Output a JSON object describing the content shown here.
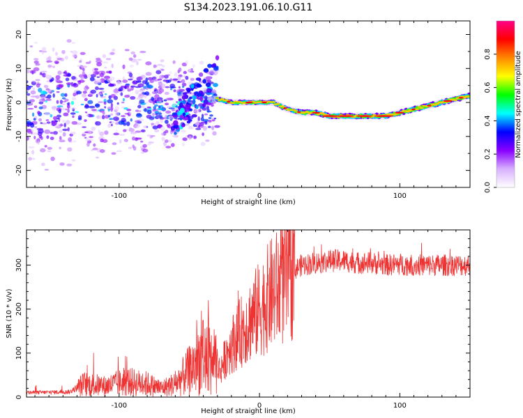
{
  "chart_data": [
    {
      "type": "heatmap",
      "title": "S134.2023.191.06.10.G11",
      "xlabel": "Height of straight line (km)",
      "ylabel": "Frequency (Hz)",
      "xlim": [
        -166,
        150
      ],
      "ylim": [
        -25,
        24
      ],
      "xticks": [
        -100,
        0,
        100
      ],
      "yticks": [
        -20,
        -10,
        0,
        10,
        20
      ],
      "colorbar": {
        "label": "Normalized spectral amplitude",
        "range": [
          0,
          1
        ],
        "ticks": [
          0.0,
          0.2,
          0.4,
          0.6,
          0.8
        ],
        "colormap": [
          "#ffffff",
          "#d8b0ff",
          "#8800ff",
          "#0000ff",
          "#00ffff",
          "#00ff00",
          "#ffff00",
          "#ff8800",
          "#ff0000",
          "#ff0088"
        ]
      },
      "ridge": {
        "x": [
          -30,
          -20,
          -10,
          0,
          10,
          20,
          30,
          40,
          50,
          60,
          70,
          80,
          90,
          100,
          110,
          120,
          130,
          140,
          150
        ],
        "y": [
          1,
          0,
          0,
          0,
          0,
          -2,
          -3,
          -3,
          -4,
          -4,
          -4,
          -4,
          -4,
          -3,
          -2,
          -1,
          0,
          1,
          2
        ]
      }
    },
    {
      "type": "line",
      "xlabel": "Height of straight line (km)",
      "ylabel": "SNR (10 * v/v)",
      "xlim": [
        -166,
        150
      ],
      "ylim": [
        0,
        380
      ],
      "xticks": [
        -100,
        0,
        100
      ],
      "yticks": [
        0,
        100,
        200,
        300
      ],
      "color": "#ee3333",
      "envelope": {
        "x": [
          -166,
          -135,
          -125,
          -110,
          -95,
          -80,
          -70,
          -60,
          -50,
          -42,
          -35,
          -28,
          -22,
          -15,
          -8,
          0,
          5,
          10,
          15,
          20,
          25,
          30,
          40,
          50,
          60,
          70,
          80,
          90,
          100,
          110,
          120,
          130,
          140,
          150
        ],
        "y": [
          10,
          12,
          30,
          25,
          35,
          30,
          20,
          30,
          60,
          90,
          90,
          60,
          110,
          140,
          170,
          200,
          220,
          240,
          250,
          270,
          290,
          300,
          305,
          310,
          310,
          305,
          305,
          300,
          302,
          300,
          300,
          300,
          300,
          300
        ]
      }
    }
  ]
}
